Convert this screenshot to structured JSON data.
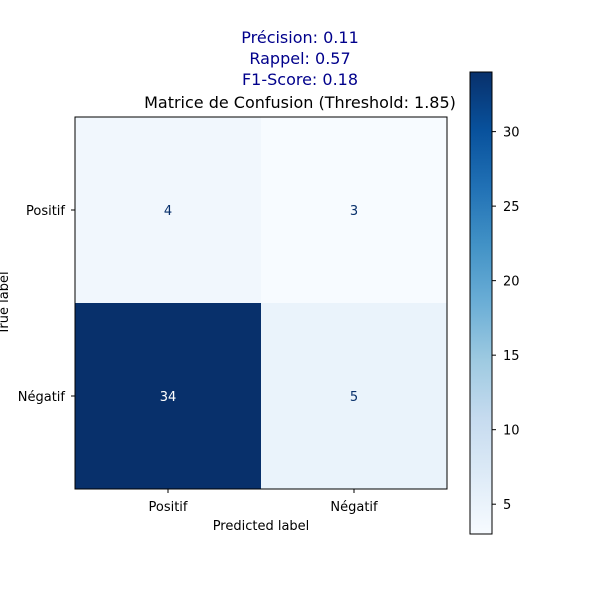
{
  "metrics": {
    "precision": "Précision: 0.11",
    "recall": "Rappel: 0.57",
    "f1": "F1-Score: 0.18",
    "color": "#00008b"
  },
  "chart_data": {
    "type": "heatmap",
    "title": "Matrice de Confusion (Threshold: 1.85)",
    "xlabel": "Predicted label",
    "ylabel": "True label",
    "x_categories": [
      "Positif",
      "Négatif"
    ],
    "y_categories": [
      "Positif",
      "Négatif"
    ],
    "values": [
      [
        4,
        3
      ],
      [
        34,
        5
      ]
    ],
    "colormap": "Blues",
    "colorbar": {
      "range": [
        3,
        34
      ],
      "ticks": [
        5,
        10,
        15,
        20,
        25,
        30
      ]
    },
    "grid": false
  }
}
